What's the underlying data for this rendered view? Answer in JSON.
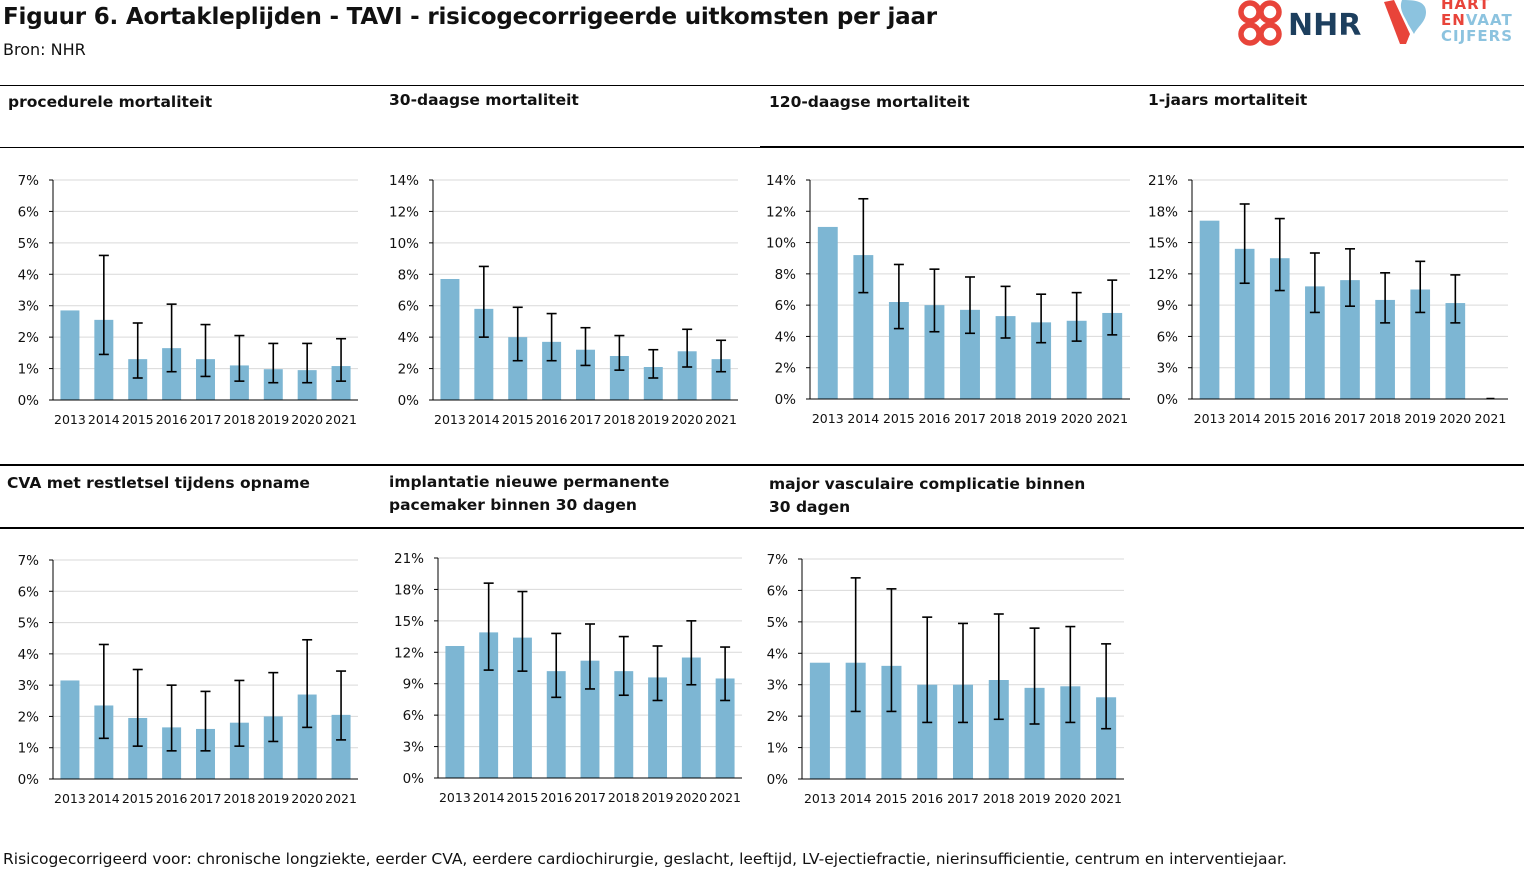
{
  "header": {
    "title": "Figuur 6. Aortakleplijden - TAVI - risicogecorrigeerde uitkomsten per jaar",
    "source": "Bron: NHR",
    "logo_nhr": "NHR",
    "logo_hart_line1": "HART",
    "logo_hart_line2a": "EN",
    "logo_hart_line2b": "VAAT",
    "logo_hart_line3": "CIJFERS"
  },
  "footnote": "Risicogecorrigeerd voor: chronische longziekte, eerder CVA, eerdere cardiochirurgie, geslacht, leeftijd, LV-ejectiefractie, nierinsufficientie, centrum en interventiejaar.",
  "colors": {
    "bar": "#7db6d3",
    "grid": "#d9d9d9",
    "axis": "#000000",
    "nhr_red": "#e8443a",
    "nhr_blue": "#1d3f5e",
    "hart_blue": "#8cc3df"
  },
  "chart_data": [
    {
      "type": "bar",
      "title": "procedurele mortaliteit",
      "categories": [
        "2013",
        "2014",
        "2015",
        "2016",
        "2017",
        "2018",
        "2019",
        "2020",
        "2021"
      ],
      "values": [
        2.85,
        2.55,
        1.3,
        1.65,
        1.3,
        1.1,
        0.98,
        0.95,
        1.08
      ],
      "err_low": [
        null,
        1.45,
        0.7,
        0.9,
        0.75,
        0.6,
        0.55,
        0.55,
        0.6
      ],
      "err_high": [
        null,
        4.6,
        2.45,
        3.05,
        2.4,
        2.05,
        1.8,
        1.8,
        1.95
      ],
      "ylim": [
        0,
        7
      ],
      "yticks": [
        "0%",
        "1%",
        "2%",
        "3%",
        "4%",
        "5%",
        "6%",
        "7%"
      ],
      "grid": true
    },
    {
      "type": "bar",
      "title": "30-daagse mortaliteit",
      "categories": [
        "2013",
        "2014",
        "2015",
        "2016",
        "2017",
        "2018",
        "2019",
        "2020",
        "2021"
      ],
      "values": [
        7.7,
        5.8,
        4.0,
        3.7,
        3.2,
        2.8,
        2.1,
        3.1,
        2.6
      ],
      "err_low": [
        null,
        4.0,
        2.5,
        2.5,
        2.2,
        1.9,
        1.4,
        2.1,
        1.8
      ],
      "err_high": [
        null,
        8.5,
        5.9,
        5.5,
        4.6,
        4.1,
        3.2,
        4.5,
        3.8
      ],
      "ylim": [
        0,
        14
      ],
      "yticks": [
        "0%",
        "2%",
        "4%",
        "6%",
        "8%",
        "10%",
        "12%",
        "14%"
      ],
      "grid": true
    },
    {
      "type": "bar",
      "title": "120-daagse mortaliteit",
      "categories": [
        "2013",
        "2014",
        "2015",
        "2016",
        "2017",
        "2018",
        "2019",
        "2020",
        "2021"
      ],
      "values": [
        11.0,
        9.2,
        6.2,
        6.0,
        5.7,
        5.3,
        4.9,
        5.0,
        5.5
      ],
      "err_low": [
        null,
        6.8,
        4.5,
        4.3,
        4.2,
        3.9,
        3.6,
        3.7,
        4.1
      ],
      "err_high": [
        null,
        12.8,
        8.6,
        8.3,
        7.8,
        7.2,
        6.7,
        6.8,
        7.6
      ],
      "ylim": [
        0,
        14
      ],
      "yticks": [
        "0%",
        "2%",
        "4%",
        "6%",
        "8%",
        "10%",
        "12%",
        "14%"
      ],
      "grid": true
    },
    {
      "type": "bar",
      "title": "1-jaars mortaliteit",
      "categories": [
        "2013",
        "2014",
        "2015",
        "2016",
        "2017",
        "2018",
        "2019",
        "2020",
        "2021"
      ],
      "values": [
        17.1,
        14.4,
        13.5,
        10.8,
        11.4,
        9.5,
        10.5,
        9.2,
        0
      ],
      "err_low": [
        null,
        11.1,
        10.4,
        8.3,
        8.9,
        7.3,
        8.3,
        7.3,
        null
      ],
      "err_high": [
        null,
        18.7,
        17.3,
        14.0,
        14.4,
        12.1,
        13.2,
        11.9,
        null
      ],
      "ylim": [
        0,
        21
      ],
      "yticks": [
        "0%",
        "3%",
        "6%",
        "9%",
        "12%",
        "15%",
        "18%",
        "21%"
      ],
      "grid": true
    },
    {
      "type": "bar",
      "title": "CVA met restletsel tijdens opname",
      "categories": [
        "2013",
        "2014",
        "2015",
        "2016",
        "2017",
        "2018",
        "2019",
        "2020",
        "2021"
      ],
      "values": [
        3.15,
        2.35,
        1.95,
        1.65,
        1.6,
        1.8,
        2.0,
        2.7,
        2.05
      ],
      "err_low": [
        null,
        1.3,
        1.05,
        0.9,
        0.9,
        1.05,
        1.2,
        1.65,
        1.25
      ],
      "err_high": [
        null,
        4.3,
        3.5,
        3.0,
        2.8,
        3.15,
        3.4,
        4.45,
        3.45
      ],
      "ylim": [
        0,
        7
      ],
      "yticks": [
        "0%",
        "1%",
        "2%",
        "3%",
        "4%",
        "5%",
        "6%",
        "7%"
      ],
      "grid": true
    },
    {
      "type": "bar",
      "title_line1": "implantatie nieuwe permanente",
      "title_line2": "pacemaker binnen 30 dagen",
      "categories": [
        "2013",
        "2014",
        "2015",
        "2016",
        "2017",
        "2018",
        "2019",
        "2020",
        "2021"
      ],
      "values": [
        12.6,
        13.9,
        13.4,
        10.2,
        11.2,
        10.2,
        9.6,
        11.5,
        9.5
      ],
      "err_low": [
        null,
        10.3,
        10.2,
        7.7,
        8.5,
        7.9,
        7.4,
        8.9,
        7.4
      ],
      "err_high": [
        null,
        18.6,
        17.8,
        13.8,
        14.7,
        13.5,
        12.6,
        15.0,
        12.5
      ],
      "ylim": [
        0,
        21
      ],
      "yticks": [
        "0%",
        "3%",
        "6%",
        "9%",
        "12%",
        "15%",
        "18%",
        "21%"
      ],
      "grid": true
    },
    {
      "type": "bar",
      "title_line1": "major vasculaire complicatie binnen",
      "title_line2": "30 dagen",
      "categories": [
        "2013",
        "2014",
        "2015",
        "2016",
        "2017",
        "2018",
        "2019",
        "2020",
        "2021"
      ],
      "values": [
        3.7,
        3.7,
        3.6,
        3.0,
        3.0,
        3.15,
        2.9,
        2.95,
        2.6
      ],
      "err_low": [
        null,
        2.15,
        2.15,
        1.8,
        1.8,
        1.9,
        1.75,
        1.8,
        1.6
      ],
      "err_high": [
        null,
        6.4,
        6.05,
        5.15,
        4.95,
        5.25,
        4.8,
        4.85,
        4.3
      ],
      "ylim": [
        0,
        7
      ],
      "yticks": [
        "0%",
        "1%",
        "2%",
        "3%",
        "4%",
        "5%",
        "6%",
        "7%"
      ],
      "grid": true
    }
  ]
}
